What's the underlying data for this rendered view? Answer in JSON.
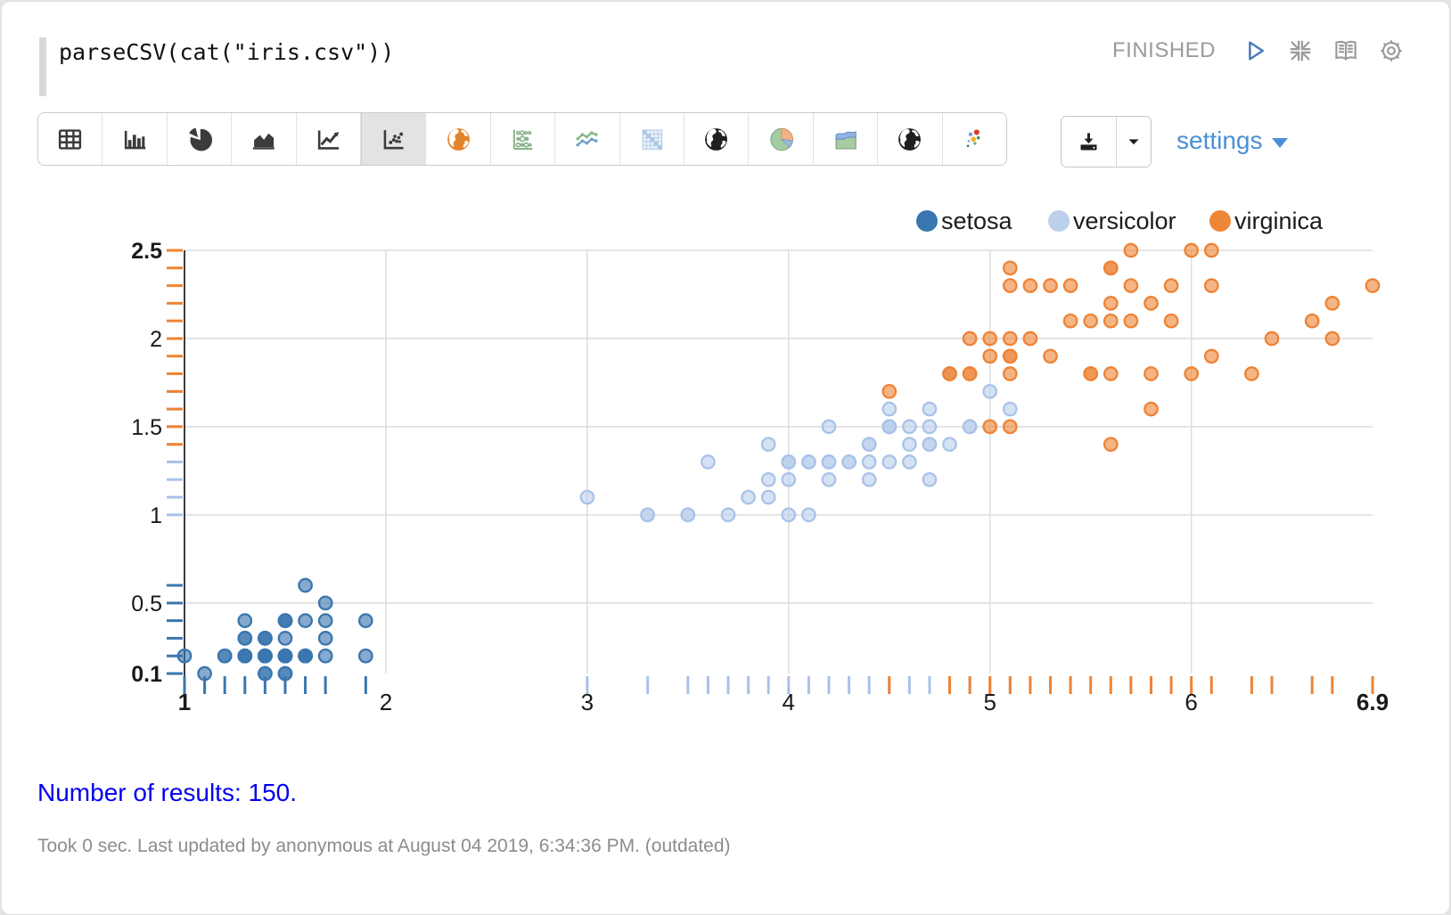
{
  "editor": {
    "code": "parseCSV(cat(\"iris.csv\"))",
    "status": "FINISHED"
  },
  "toolbar": {
    "buttons": [
      {
        "id": "table",
        "icon": "table-icon",
        "selected": false
      },
      {
        "id": "bar",
        "icon": "bar-chart-icon",
        "selected": false
      },
      {
        "id": "pie",
        "icon": "pie-chart-icon",
        "selected": false
      },
      {
        "id": "area",
        "icon": "area-chart-icon",
        "selected": false
      },
      {
        "id": "line",
        "icon": "line-chart-icon",
        "selected": false
      },
      {
        "id": "scatter",
        "icon": "scatter-chart-icon",
        "selected": true
      },
      {
        "id": "globe-orange",
        "icon": "globe-orange-icon",
        "selected": false
      },
      {
        "id": "bubble-matrix",
        "icon": "bubble-grid-icon",
        "selected": false
      },
      {
        "id": "multi-line",
        "icon": "multi-line-icon",
        "selected": false
      },
      {
        "id": "heatmap-matrix",
        "icon": "matrix-icon",
        "selected": false
      },
      {
        "id": "globe-dark-1",
        "icon": "globe-dark-icon",
        "selected": false
      },
      {
        "id": "pie-colored",
        "icon": "pie-colored-icon",
        "selected": false
      },
      {
        "id": "area-colored",
        "icon": "area-colored-icon",
        "selected": false
      },
      {
        "id": "globe-dark-2",
        "icon": "globe-dark-icon",
        "selected": false
      },
      {
        "id": "scatter-colored",
        "icon": "scatter-colored-icon",
        "selected": false
      }
    ]
  },
  "actions": {
    "settings_label": "settings"
  },
  "chart_data": {
    "type": "scatter",
    "title": "",
    "xlabel": "",
    "ylabel": "",
    "x_axis": {
      "min": 1,
      "max": 6.9,
      "ticks": [
        1,
        2,
        3,
        4,
        5,
        6,
        6.9
      ]
    },
    "y_axis": {
      "min": 0.1,
      "max": 2.5,
      "ticks": [
        2.5,
        2,
        1.5,
        1,
        0.5,
        0.1
      ]
    },
    "grid": true,
    "legend_position": "top-right",
    "series": [
      {
        "name": "setosa",
        "color": "#3a76af",
        "stroke": "#3a76af",
        "points": [
          [
            1.4,
            0.2
          ],
          [
            1.4,
            0.2
          ],
          [
            1.3,
            0.2
          ],
          [
            1.5,
            0.2
          ],
          [
            1.4,
            0.2
          ],
          [
            1.7,
            0.4
          ],
          [
            1.4,
            0.3
          ],
          [
            1.5,
            0.2
          ],
          [
            1.4,
            0.2
          ],
          [
            1.5,
            0.1
          ],
          [
            1.5,
            0.2
          ],
          [
            1.6,
            0.2
          ],
          [
            1.4,
            0.1
          ],
          [
            1.1,
            0.1
          ],
          [
            1.2,
            0.2
          ],
          [
            1.5,
            0.4
          ],
          [
            1.3,
            0.4
          ],
          [
            1.4,
            0.3
          ],
          [
            1.7,
            0.3
          ],
          [
            1.5,
            0.3
          ],
          [
            1.7,
            0.2
          ],
          [
            1.5,
            0.4
          ],
          [
            1.0,
            0.2
          ],
          [
            1.7,
            0.5
          ],
          [
            1.9,
            0.2
          ],
          [
            1.6,
            0.2
          ],
          [
            1.6,
            0.4
          ],
          [
            1.5,
            0.2
          ],
          [
            1.4,
            0.2
          ],
          [
            1.6,
            0.2
          ],
          [
            1.6,
            0.2
          ],
          [
            1.5,
            0.4
          ],
          [
            1.5,
            0.1
          ],
          [
            1.4,
            0.2
          ],
          [
            1.5,
            0.2
          ],
          [
            1.2,
            0.2
          ],
          [
            1.3,
            0.2
          ],
          [
            1.4,
            0.1
          ],
          [
            1.3,
            0.2
          ],
          [
            1.5,
            0.2
          ],
          [
            1.3,
            0.3
          ],
          [
            1.3,
            0.3
          ],
          [
            1.3,
            0.2
          ],
          [
            1.6,
            0.6
          ],
          [
            1.9,
            0.4
          ],
          [
            1.4,
            0.3
          ],
          [
            1.6,
            0.2
          ],
          [
            1.4,
            0.2
          ],
          [
            1.5,
            0.2
          ],
          [
            1.4,
            0.2
          ]
        ]
      },
      {
        "name": "versicolor",
        "color": "#bcd0ec",
        "stroke": "#a9c2e8",
        "points": [
          [
            4.7,
            1.4
          ],
          [
            4.5,
            1.5
          ],
          [
            4.9,
            1.5
          ],
          [
            4.0,
            1.3
          ],
          [
            4.6,
            1.5
          ],
          [
            4.5,
            1.3
          ],
          [
            4.7,
            1.6
          ],
          [
            3.3,
            1.0
          ],
          [
            4.6,
            1.3
          ],
          [
            3.9,
            1.4
          ],
          [
            3.5,
            1.0
          ],
          [
            4.2,
            1.5
          ],
          [
            4.0,
            1.0
          ],
          [
            4.7,
            1.4
          ],
          [
            3.6,
            1.3
          ],
          [
            4.4,
            1.4
          ],
          [
            4.5,
            1.5
          ],
          [
            4.1,
            1.0
          ],
          [
            4.5,
            1.5
          ],
          [
            3.9,
            1.1
          ],
          [
            4.8,
            1.8
          ],
          [
            4.0,
            1.3
          ],
          [
            4.9,
            1.5
          ],
          [
            4.7,
            1.2
          ],
          [
            4.3,
            1.3
          ],
          [
            4.4,
            1.4
          ],
          [
            4.8,
            1.4
          ],
          [
            5.0,
            1.7
          ],
          [
            4.5,
            1.5
          ],
          [
            3.5,
            1.0
          ],
          [
            3.8,
            1.1
          ],
          [
            3.7,
            1.0
          ],
          [
            3.9,
            1.2
          ],
          [
            5.1,
            1.6
          ],
          [
            4.5,
            1.5
          ],
          [
            4.5,
            1.6
          ],
          [
            4.7,
            1.5
          ],
          [
            4.4,
            1.3
          ],
          [
            4.1,
            1.3
          ],
          [
            4.0,
            1.3
          ],
          [
            4.4,
            1.2
          ],
          [
            4.6,
            1.4
          ],
          [
            4.0,
            1.2
          ],
          [
            3.3,
            1.0
          ],
          [
            4.2,
            1.3
          ],
          [
            4.2,
            1.2
          ],
          [
            4.2,
            1.3
          ],
          [
            4.3,
            1.3
          ],
          [
            3.0,
            1.1
          ],
          [
            4.1,
            1.3
          ]
        ]
      },
      {
        "name": "virginica",
        "color": "#ee8638",
        "stroke": "#ee8335",
        "points": [
          [
            6.0,
            2.5
          ],
          [
            5.1,
            1.9
          ],
          [
            5.9,
            2.1
          ],
          [
            5.6,
            1.8
          ],
          [
            5.8,
            2.2
          ],
          [
            6.6,
            2.1
          ],
          [
            4.5,
            1.7
          ],
          [
            6.3,
            1.8
          ],
          [
            5.8,
            1.8
          ],
          [
            6.1,
            2.5
          ],
          [
            5.1,
            2.0
          ],
          [
            5.3,
            1.9
          ],
          [
            5.5,
            2.1
          ],
          [
            5.0,
            2.0
          ],
          [
            5.1,
            2.4
          ],
          [
            5.3,
            2.3
          ],
          [
            5.5,
            1.8
          ],
          [
            6.7,
            2.2
          ],
          [
            6.9,
            2.3
          ],
          [
            5.0,
            1.5
          ],
          [
            5.7,
            2.3
          ],
          [
            4.9,
            2.0
          ],
          [
            6.7,
            2.0
          ],
          [
            4.9,
            1.8
          ],
          [
            5.7,
            2.1
          ],
          [
            6.0,
            1.8
          ],
          [
            4.8,
            1.8
          ],
          [
            4.9,
            1.8
          ],
          [
            5.6,
            2.1
          ],
          [
            5.8,
            1.6
          ],
          [
            6.1,
            1.9
          ],
          [
            6.4,
            2.0
          ],
          [
            5.6,
            2.2
          ],
          [
            5.1,
            1.5
          ],
          [
            5.6,
            1.4
          ],
          [
            6.1,
            2.3
          ],
          [
            5.6,
            2.4
          ],
          [
            5.5,
            1.8
          ],
          [
            4.8,
            1.8
          ],
          [
            5.4,
            2.1
          ],
          [
            5.6,
            2.4
          ],
          [
            5.1,
            2.3
          ],
          [
            5.1,
            1.9
          ],
          [
            5.9,
            2.3
          ],
          [
            5.7,
            2.5
          ],
          [
            5.2,
            2.3
          ],
          [
            5.0,
            1.9
          ],
          [
            5.2,
            2.0
          ],
          [
            5.4,
            2.3
          ],
          [
            5.1,
            1.8
          ]
        ]
      }
    ]
  },
  "results": {
    "text": "Number of results: 150."
  },
  "footer": {
    "text": "Took 0 sec. Last updated by anonymous at August 04 2019, 6:34:36 PM. (outdated)"
  }
}
